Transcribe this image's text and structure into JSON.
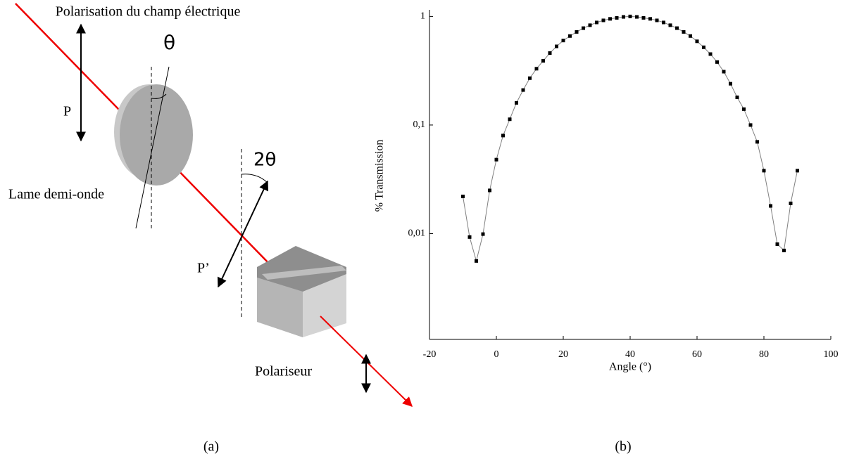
{
  "diagram": {
    "title": "Polarisation du champ électrique",
    "theta": "θ",
    "p": "P",
    "two_theta": "2θ",
    "plate": "Lame demi-onde",
    "p_prime": "P’",
    "polarizer": "Polariseur"
  },
  "captions": [
    "(a)",
    "(b)"
  ],
  "chart_data": {
    "type": "scatter-line",
    "xlabel": "Angle (°)",
    "ylabel": "% Transmission",
    "x": [
      -10,
      -8,
      -6,
      -4,
      -2,
      0,
      2,
      4,
      6,
      8,
      10,
      12,
      14,
      16,
      18,
      20,
      22,
      24,
      26,
      28,
      30,
      32,
      34,
      36,
      38,
      40,
      42,
      44,
      46,
      48,
      50,
      52,
      54,
      56,
      58,
      60,
      62,
      64,
      66,
      68,
      70,
      72,
      74,
      76,
      78,
      80,
      82,
      84,
      86,
      88,
      90
    ],
    "values": [
      0.022,
      0.0093,
      0.0056,
      0.0099,
      0.025,
      0.048,
      0.08,
      0.113,
      0.16,
      0.21,
      0.27,
      0.33,
      0.39,
      0.46,
      0.53,
      0.6,
      0.66,
      0.72,
      0.78,
      0.83,
      0.88,
      0.92,
      0.95,
      0.97,
      0.99,
      1,
      0.99,
      0.97,
      0.95,
      0.92,
      0.88,
      0.83,
      0.78,
      0.72,
      0.66,
      0.59,
      0.52,
      0.45,
      0.38,
      0.31,
      0.24,
      0.18,
      0.14,
      0.1,
      0.07,
      0.038,
      0.018,
      0.008,
      0.007,
      0.019,
      0.038
    ],
    "color": "#000000",
    "line_color": "#808080",
    "xlim": [
      -20,
      100
    ],
    "xticks": [
      -20,
      0,
      20,
      40,
      60,
      80,
      100
    ],
    "ylim": [
      0.001,
      1.15
    ],
    "log_y": true,
    "yticks": [
      {
        "value": 0.01,
        "label": "0,01"
      },
      {
        "value": 0.1,
        "label": "0,1"
      },
      {
        "value": 1,
        "label": "1"
      }
    ]
  }
}
